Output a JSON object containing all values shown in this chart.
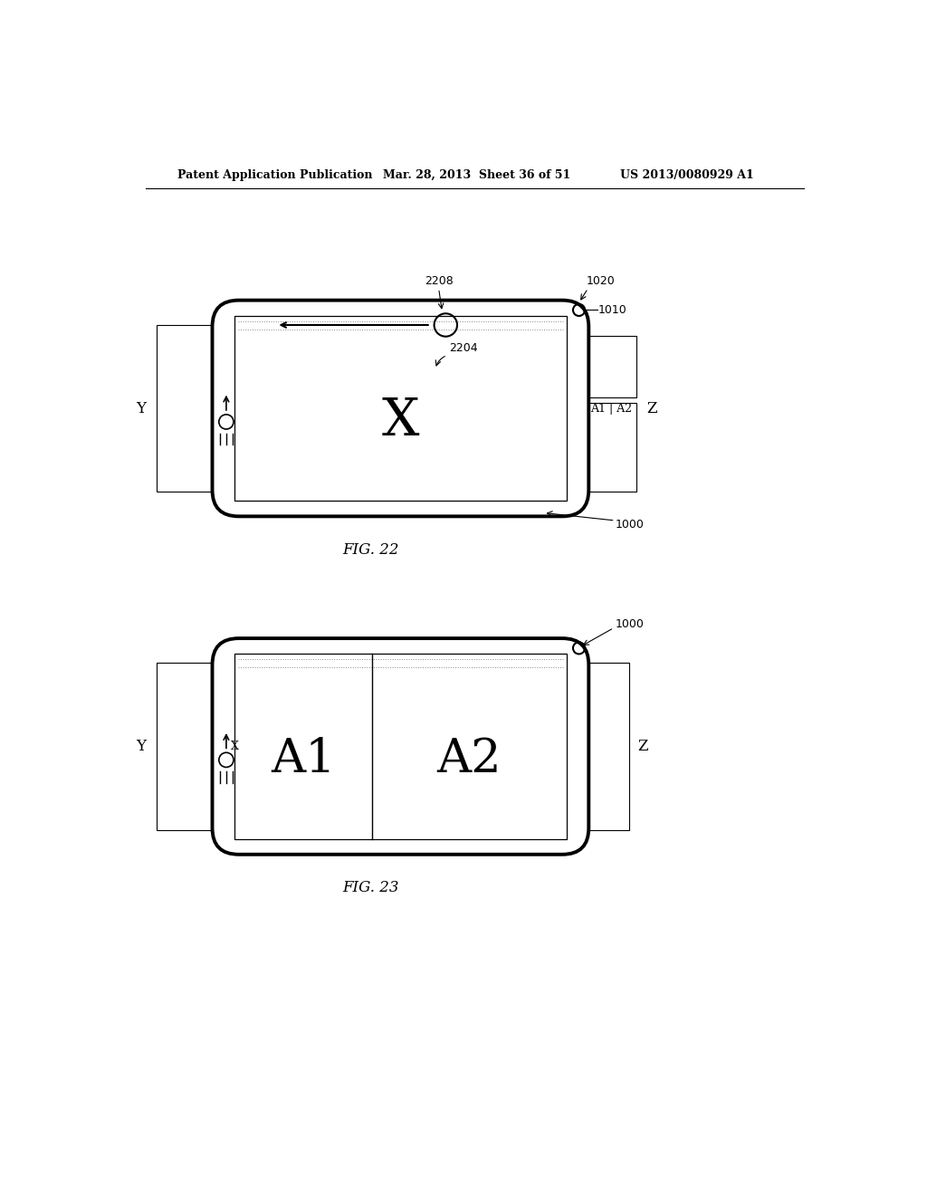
{
  "header_left": "Patent Application Publication",
  "header_mid": "Mar. 28, 2013  Sheet 36 of 51",
  "header_right": "US 2013/0080929 A1",
  "fig22_label": "FIG. 22",
  "fig23_label": "FIG. 23",
  "bg_color": "#ffffff",
  "line_color": "#000000"
}
